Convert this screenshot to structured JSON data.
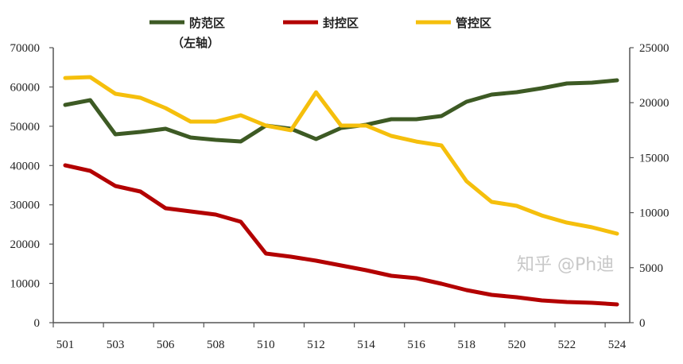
{
  "chart_data": {
    "type": "line",
    "categories": [
      "501",
      "502",
      "503",
      "505",
      "506",
      "507",
      "508",
      "509",
      "510",
      "511",
      "512",
      "513",
      "514",
      "515",
      "516",
      "517",
      "518",
      "519",
      "520",
      "521",
      "522",
      "523",
      "524"
    ],
    "x_tick_labels": [
      "501",
      "503",
      "506",
      "508",
      "510",
      "512",
      "514",
      "516",
      "518",
      "520",
      "522",
      "524"
    ],
    "left_axis": {
      "ylim": [
        0,
        70000
      ],
      "ticks": [
        "0",
        "10000",
        "20000",
        "30000",
        "40000",
        "50000",
        "60000",
        "70000"
      ]
    },
    "right_axis": {
      "ylim": [
        0,
        25000
      ],
      "ticks": [
        "0",
        "5000",
        "10000",
        "15000",
        "20000",
        "25000"
      ]
    },
    "series": [
      {
        "name": "防范区",
        "axis": "left",
        "color": "#3d5a24",
        "values": [
          55430,
          56650,
          47950,
          48550,
          49360,
          47130,
          46530,
          46130,
          50170,
          49360,
          46730,
          49570,
          50370,
          51790,
          51790,
          52600,
          56240,
          58060,
          58670,
          59680,
          60900,
          61100,
          61700
        ]
      },
      {
        "name": "封控区",
        "axis": "left",
        "color": "#b30000",
        "values": [
          40060,
          38640,
          34800,
          33380,
          29130,
          28320,
          27510,
          25690,
          17600,
          16790,
          15780,
          14570,
          13350,
          11940,
          11330,
          9910,
          8290,
          7080,
          6470,
          5660,
          5260,
          5060,
          4650
        ]
      },
      {
        "name": "管控区",
        "axis": "right",
        "color": "#f5bf0c",
        "values": [
          22250,
          22330,
          20810,
          20450,
          19510,
          18280,
          18280,
          18860,
          17920,
          17490,
          20950,
          17920,
          17920,
          16980,
          16470,
          16110,
          12860,
          10980,
          10620,
          9750,
          9100,
          8670,
          8090
        ]
      }
    ],
    "legend_note": "（左轴）",
    "legend_placement": "top",
    "grid": false
  },
  "watermark": "知乎 @Ph迪"
}
